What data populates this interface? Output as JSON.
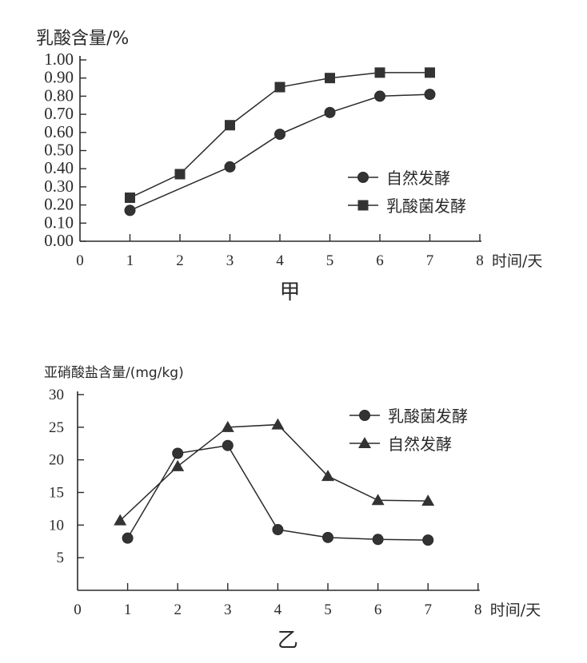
{
  "chart_data": [
    {
      "type": "line",
      "title": "甲",
      "ylabel": "乳酸含量/%",
      "xlabel": "时间/天",
      "xlim": [
        0,
        8
      ],
      "ylim": [
        0,
        1.0
      ],
      "xticks": [
        "0",
        "1",
        "2",
        "3",
        "4",
        "5",
        "6",
        "7",
        "8"
      ],
      "yticks": [
        "0.00",
        "0.10",
        "0.20",
        "0.30",
        "0.40",
        "0.50",
        "0.60",
        "0.70",
        "0.80",
        "0.90",
        "1.00"
      ],
      "legend_position": "center-right",
      "series": [
        {
          "name": "自然发酵",
          "marker": "circle",
          "x": [
            1,
            3,
            4,
            5,
            6,
            7
          ],
          "y": [
            0.17,
            0.41,
            0.59,
            0.71,
            0.8,
            0.81
          ]
        },
        {
          "name": "乳酸菌发酵",
          "marker": "square",
          "x": [
            1,
            2,
            3,
            4,
            5,
            6,
            7
          ],
          "y": [
            0.24,
            0.37,
            0.64,
            0.85,
            0.9,
            0.93,
            0.93
          ]
        }
      ]
    },
    {
      "type": "line",
      "title": "乙",
      "ylabel": "亚硝酸盐含量/(mg/kg)",
      "xlabel": "时间/天",
      "xlim": [
        0,
        8
      ],
      "ylim": [
        0,
        30
      ],
      "xticks": [
        "0",
        "1",
        "2",
        "3",
        "4",
        "5",
        "6",
        "7",
        "8"
      ],
      "yticks": [
        "5",
        "10",
        "15",
        "20",
        "25",
        "30"
      ],
      "legend_position": "top-right",
      "series": [
        {
          "name": "乳酸菌发酵",
          "marker": "circle",
          "x": [
            1,
            2,
            3,
            4,
            5,
            6,
            7
          ],
          "y": [
            8.0,
            21.0,
            22.2,
            9.3,
            8.1,
            7.8,
            7.7
          ]
        },
        {
          "name": "自然发酵",
          "marker": "triangle",
          "x": [
            0.85,
            2,
            3,
            4,
            5,
            6,
            7
          ],
          "y": [
            10.7,
            19.0,
            25.0,
            25.4,
            17.5,
            13.8,
            13.7
          ]
        }
      ]
    }
  ]
}
